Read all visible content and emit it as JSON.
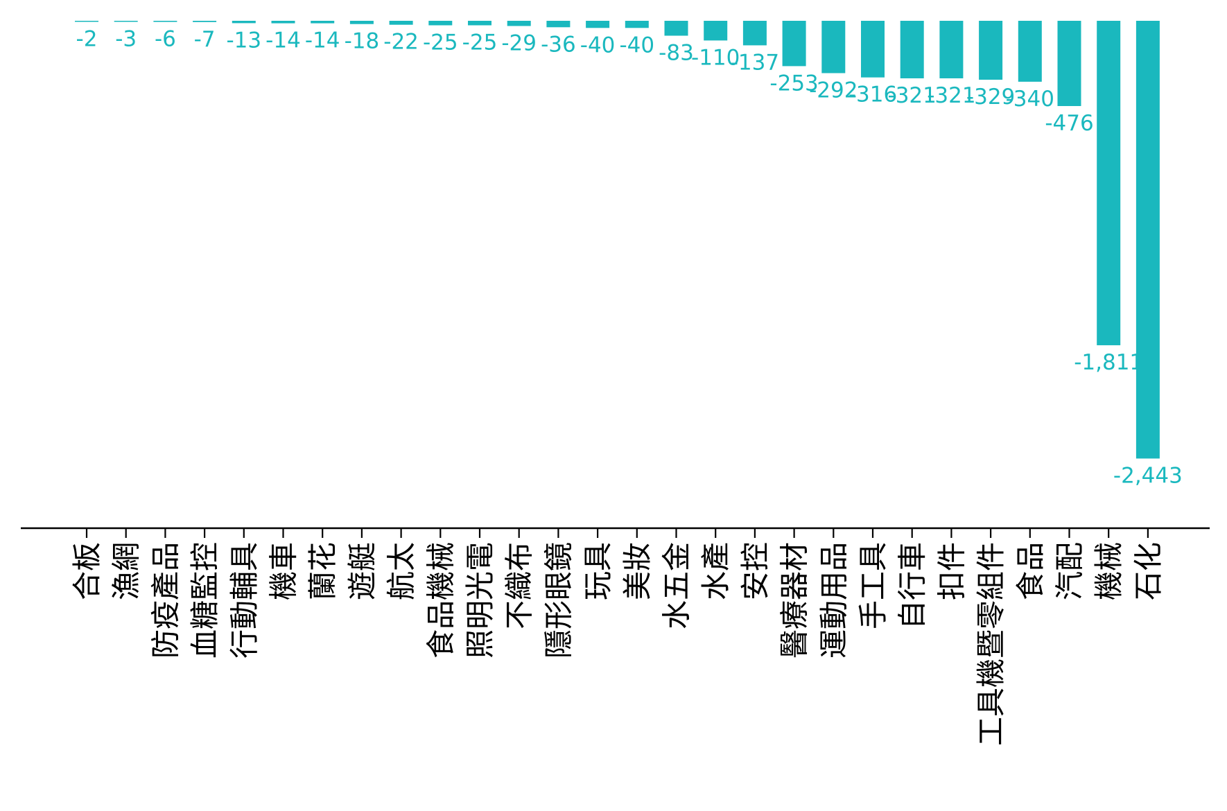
{
  "chart_data": {
    "type": "bar",
    "orientation": "vertical",
    "color": "#1ab8be",
    "label_color": "#1ab8be",
    "axis_color": "#000000",
    "grid": false,
    "legend": "none",
    "title": "",
    "xlabel": "",
    "ylabel": "",
    "ylim": [
      -2850,
      0
    ],
    "categories": [
      "合板",
      "漁網",
      "防疫產品",
      "血糖監控",
      "行動輔具",
      "機車",
      "蘭花",
      "遊艇",
      "航太",
      "食品機械",
      "照明光電",
      "不織布",
      "隱形眼鏡",
      "玩具",
      "美妝",
      "水五金",
      "水產",
      "安控",
      "醫療器材",
      "運動用品",
      "手工具",
      "自行車",
      "扣件",
      "工具機暨零組件",
      "食品",
      "汽配",
      "機械",
      "石化"
    ],
    "values": [
      -2,
      -3,
      -6,
      -7,
      -13,
      -14,
      -14,
      -18,
      -22,
      -25,
      -25,
      -29,
      -36,
      -40,
      -40,
      -83,
      -110,
      -137,
      -253,
      -292,
      -316,
      -321,
      -321,
      -329,
      -340,
      -476,
      -1811,
      -2443
    ],
    "value_labels": [
      "-2",
      "-3",
      "-6",
      "-7",
      "-13",
      "-14",
      "-14",
      "-18",
      "-22",
      "-25",
      "-25",
      "-29",
      "-36",
      "-40",
      "-40",
      "-83",
      "-110",
      "-137",
      "-253",
      "-292",
      "-316",
      "-321",
      "-321",
      "-329",
      "-340",
      "-476",
      "-1,811",
      "-2,443"
    ]
  }
}
